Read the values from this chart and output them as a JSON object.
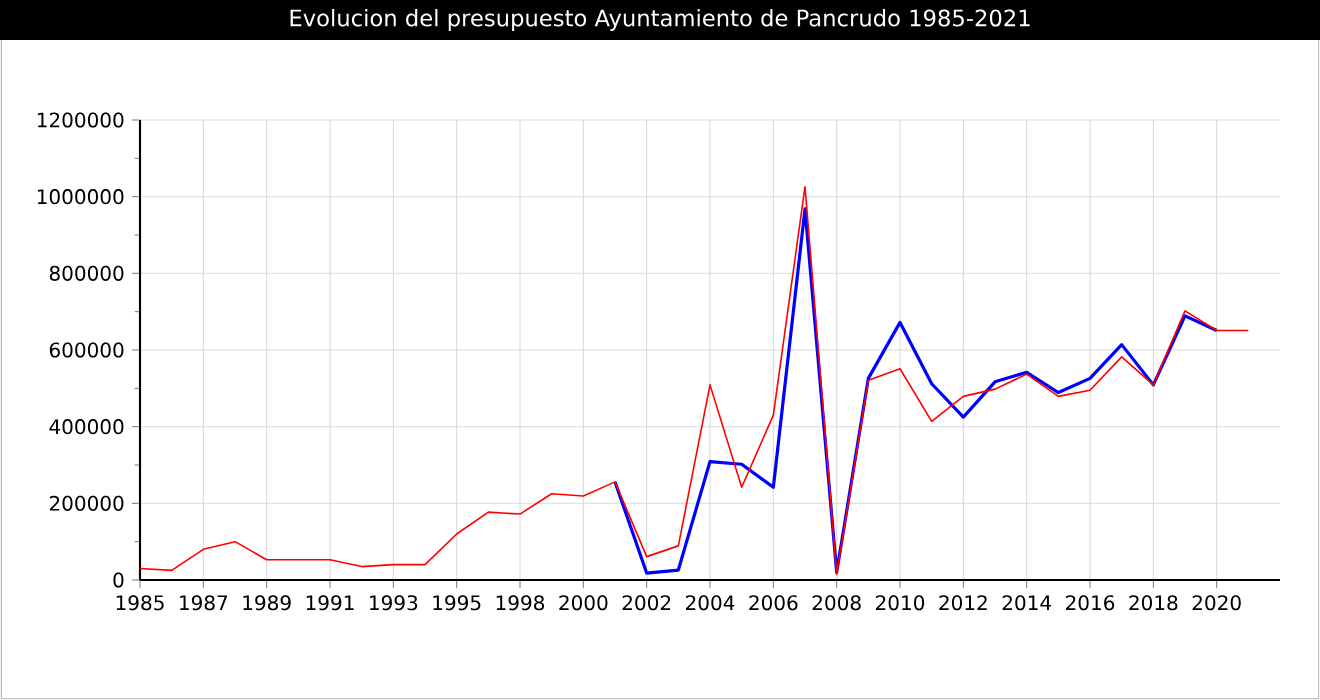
{
  "chart_data": {
    "type": "line",
    "title": "Evolucion del presupuesto Ayuntamiento de Pancrudo 1985-2021",
    "categories": [
      "1985",
      null,
      "1987",
      null,
      "1989",
      null,
      "1991",
      null,
      "1993",
      null,
      "1995",
      null,
      "1998",
      null,
      "2000",
      null,
      "2002",
      null,
      "2004",
      null,
      "2006",
      null,
      "2008",
      null,
      "2010",
      null,
      "2012",
      null,
      "2014",
      null,
      "2016",
      null,
      "2018",
      null,
      "2020",
      null
    ],
    "series": [
      {
        "color": "#0000ff",
        "values": [
          null,
          null,
          null,
          null,
          null,
          null,
          null,
          null,
          null,
          null,
          null,
          null,
          null,
          null,
          null,
          256000,
          18000,
          26000,
          309000,
          302000,
          242000,
          968000,
          20000,
          526000,
          672000,
          512000,
          425000,
          517000,
          542000,
          489000,
          526000,
          614000,
          509000,
          689000,
          651000,
          null
        ]
      },
      {
        "color": "#ff0000",
        "values": [
          30000,
          25000,
          80000,
          100000,
          53000,
          53000,
          53000,
          35000,
          40000,
          40000,
          120000,
          177000,
          172000,
          225000,
          219000,
          256000,
          61000,
          89000,
          509000,
          242000,
          430000,
          1026000,
          15000,
          521000,
          551000,
          414000,
          479000,
          498000,
          537000,
          479000,
          495000,
          582000,
          509000,
          702000,
          651000,
          651000
        ]
      }
    ],
    "ylim": [
      0,
      1200000
    ],
    "yticks": [
      0,
      200000,
      400000,
      600000,
      800000,
      1000000,
      1200000
    ],
    "grid": true,
    "marker": "none",
    "line_style": "solid"
  }
}
